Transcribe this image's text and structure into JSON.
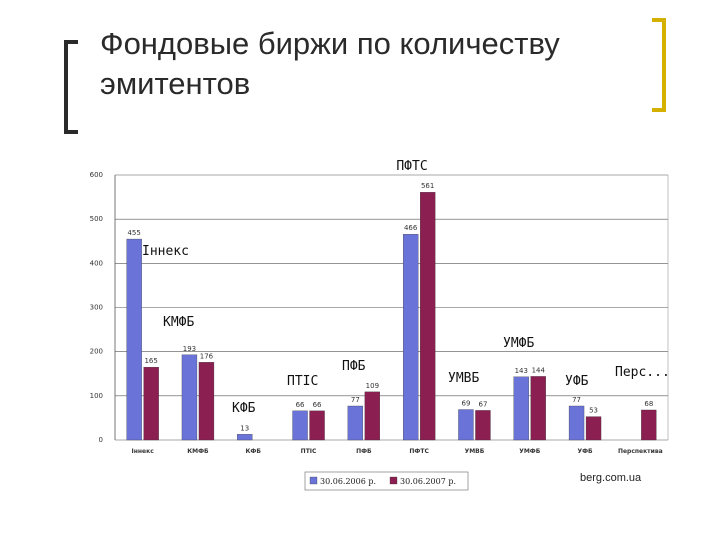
{
  "slide": {
    "title": "Фондовые биржи по количеству эмитентов",
    "credit": "berg.com.ua"
  },
  "chart_data": {
    "type": "bar",
    "title": "",
    "xlabel": "",
    "ylabel": "",
    "ylim": [
      0,
      600
    ],
    "yticks": [
      0,
      100,
      200,
      300,
      400,
      500,
      600
    ],
    "grid": true,
    "legend_position": "bottom",
    "categories": [
      "Іннекс",
      "КМФБ",
      "КФБ",
      "ПТІС",
      "ПФБ",
      "ПФТС",
      "УМВБ",
      "УМФБ",
      "УФБ",
      "Перспектива"
    ],
    "series": [
      {
        "name": "30.06.2006 р.",
        "color": "#6a73d8",
        "values": [
          455,
          193,
          13,
          66,
          77,
          466,
          69,
          143,
          77,
          null
        ]
      },
      {
        "name": "30.06.2007 р.",
        "color": "#8c1f52",
        "values": [
          165,
          176,
          null,
          66,
          109,
          561,
          67,
          144,
          53,
          68
        ]
      }
    ],
    "data_labels": [
      {
        "category": "Іннекс",
        "label2006": "455",
        "label2007": "165"
      },
      {
        "category": "КМФБ",
        "label2006": "193",
        "label2007": "176"
      },
      {
        "category": "КФБ",
        "label2006": "13",
        "label2007": ""
      },
      {
        "category": "ПТІС",
        "label2006": "66",
        "label2007": "66"
      },
      {
        "category": "ПФБ",
        "label2006": "77",
        "label2007": "109"
      },
      {
        "category": "ПФТС",
        "label2006": "466",
        "label2007": "561"
      },
      {
        "category": "УМВБ",
        "label2006": "69",
        "label2007": "67"
      },
      {
        "category": "УМФБ",
        "label2006": "143",
        "label2007": "144"
      },
      {
        "category": "УФБ",
        "label2006": "77",
        "label2007": "53"
      },
      {
        "category": "Перспектива",
        "label2006": "",
        "label2007": "68"
      }
    ],
    "annotations": [
      "ПФТС",
      "Іннекс",
      "КМФБ",
      "ПФБ",
      "ПТІС",
      "КФБ",
      "УМВБ",
      "УМФБ",
      "УФБ",
      "Перс..."
    ]
  }
}
